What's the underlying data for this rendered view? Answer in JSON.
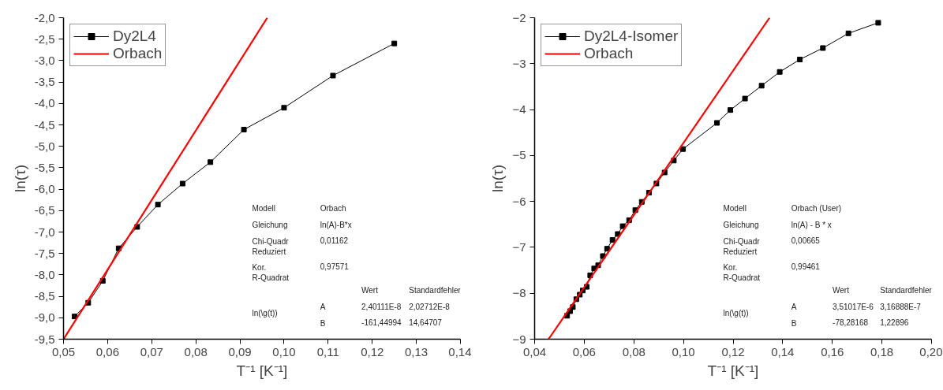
{
  "chart_data": [
    {
      "type": "line",
      "xlabel": "T⁻¹ [K⁻¹]",
      "ylabel": "ln(τ)",
      "legend": "top left",
      "grid": false,
      "xlim": [
        0.05,
        0.14
      ],
      "xticks": [
        {
          "value": 0.05,
          "label": "0,05"
        },
        {
          "value": 0.06,
          "label": "0,06"
        },
        {
          "value": 0.07,
          "label": "0,07"
        },
        {
          "value": 0.08,
          "label": "0,08"
        },
        {
          "value": 0.09,
          "label": "0,09"
        },
        {
          "value": 0.1,
          "label": "0,10"
        },
        {
          "value": 0.11,
          "label": "0,11"
        },
        {
          "value": 0.12,
          "label": "0,12"
        },
        {
          "value": 0.13,
          "label": "0,13"
        },
        {
          "value": 0.14,
          "label": "0,14"
        }
      ],
      "ylim": [
        -9.5,
        -2.0
      ],
      "yticks": [
        {
          "value": -2.0,
          "label": "-2,0"
        },
        {
          "value": -2.5,
          "label": "-2,5"
        },
        {
          "value": -3.0,
          "label": "-3,0"
        },
        {
          "value": -3.5,
          "label": "-3,5"
        },
        {
          "value": -4.0,
          "label": "-4,0"
        },
        {
          "value": -4.5,
          "label": "-4,5"
        },
        {
          "value": -5.0,
          "label": "-5,0"
        },
        {
          "value": -5.5,
          "label": "-5,5"
        },
        {
          "value": -6.0,
          "label": "-6,0"
        },
        {
          "value": -6.5,
          "label": "-6,5"
        },
        {
          "value": -7.0,
          "label": "-7,0"
        },
        {
          "value": -7.5,
          "label": "-7,5"
        },
        {
          "value": -8.0,
          "label": "-8,0"
        },
        {
          "value": -8.5,
          "label": "-8,5"
        },
        {
          "value": -9.0,
          "label": "-9,0"
        },
        {
          "value": -9.5,
          "label": "-9,5"
        }
      ],
      "series": [
        {
          "name": "Dy2L4",
          "color": "#000000",
          "marker": "square",
          "x": [
            0.0525,
            0.0556,
            0.0589,
            0.0625,
            0.0667,
            0.0714,
            0.077,
            0.0833,
            0.0909,
            0.1,
            0.1111,
            0.125
          ],
          "values": [
            -8.97,
            -8.65,
            -8.14,
            -7.38,
            -6.88,
            -6.36,
            -5.87,
            -5.37,
            -4.61,
            -4.1,
            -3.35,
            -2.6
          ]
        },
        {
          "name": "Orbach",
          "color": "#ff0000",
          "marker": "none",
          "x": [
            0.05,
            0.0962
          ],
          "values": [
            -9.5,
            -2.0
          ]
        }
      ],
      "annotations": [
        "Modell",
        "Orbach",
        "Gleichung",
        "ln(A)-B*x",
        "Chi-Quadr\nReduziert",
        "0,01162",
        "Kor.\nR-Quadrat",
        "0,97571",
        "Wert",
        "Standardfehler",
        "ln(\\g(t))",
        "A",
        "2,40111E-8",
        "2,02712E-8",
        "B",
        "-161,44994",
        "14,64707"
      ]
    },
    {
      "type": "line",
      "xlabel": "T⁻¹ [K⁻¹]",
      "ylabel": "ln(τ)",
      "legend": "top left",
      "grid": false,
      "xlim": [
        0.04,
        0.2
      ],
      "xticks": [
        {
          "value": 0.04,
          "label": "0,04"
        },
        {
          "value": 0.06,
          "label": "0,06"
        },
        {
          "value": 0.08,
          "label": "0,08"
        },
        {
          "value": 0.1,
          "label": "0,10"
        },
        {
          "value": 0.12,
          "label": "0,12"
        },
        {
          "value": 0.14,
          "label": "0,14"
        },
        {
          "value": 0.16,
          "label": "0,16"
        },
        {
          "value": 0.18,
          "label": "0,18"
        },
        {
          "value": 0.2,
          "label": "0,20"
        }
      ],
      "ylim": [
        -9,
        -2
      ],
      "yticks": [
        -2,
        -3,
        -4,
        -5,
        -6,
        -7,
        -8,
        -9
      ],
      "series": [
        {
          "name": "Dy2L4-Isomer",
          "color": "#000000",
          "marker": "square",
          "x": [
            0.0531,
            0.0543,
            0.0554,
            0.0568,
            0.0582,
            0.0594,
            0.061,
            0.0624,
            0.064,
            0.0656,
            0.0675,
            0.0692,
            0.0714,
            0.0735,
            0.0755,
            0.0781,
            0.0806,
            0.0832,
            0.0861,
            0.0891,
            0.0924,
            0.0961,
            0.0998,
            0.1135,
            0.1189,
            0.1248,
            0.1315,
            0.1388,
            0.1469,
            0.1562,
            0.1665,
            0.1785
          ],
          "values": [
            -8.49,
            -8.39,
            -8.3,
            -8.13,
            -8.03,
            -7.94,
            -7.86,
            -7.61,
            -7.46,
            -7.39,
            -7.19,
            -7.03,
            -6.84,
            -6.71,
            -6.54,
            -6.41,
            -6.19,
            -6.01,
            -5.81,
            -5.61,
            -5.37,
            -5.11,
            -4.86,
            -4.29,
            -4.01,
            -3.76,
            -3.48,
            -3.18,
            -2.91,
            -2.66,
            -2.34,
            -2.11
          ]
        },
        {
          "name": "Orbach",
          "color": "#ff0000",
          "marker": "none",
          "x": [
            0.0456,
            0.1347
          ],
          "values": [
            -9.0,
            -2.0
          ]
        }
      ],
      "annotations": [
        "Modell",
        "Orbach (User)",
        "Gleichung",
        "ln(A) - B * x",
        "Chi-Quadr\nReduziert",
        "0,00665",
        "Kor.\nR-Quadrat",
        "0,99461",
        "Wert",
        "Standardfehler",
        "ln(\\g(t))",
        "A",
        "3,51017E-6",
        "3,16888E-7",
        "B",
        "-78,28168",
        "1,22896"
      ]
    }
  ]
}
